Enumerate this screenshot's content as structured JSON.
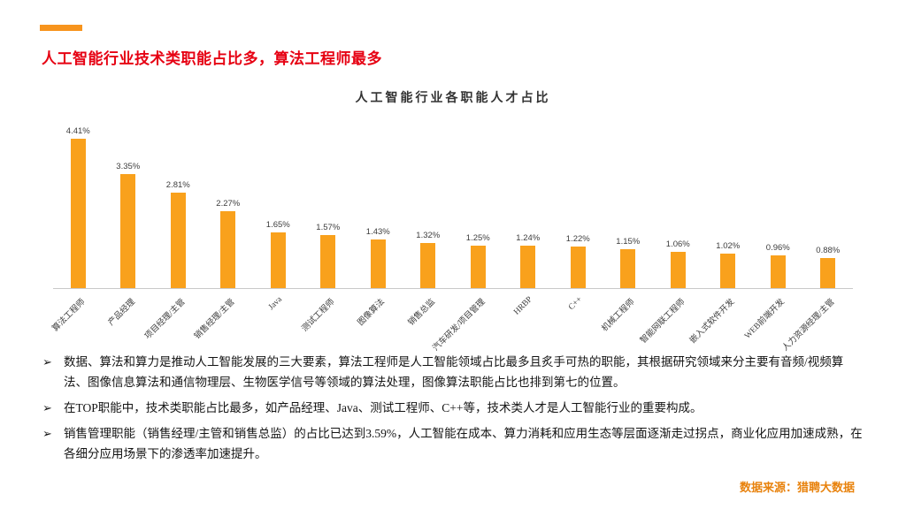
{
  "colors": {
    "accent": "#F7941D",
    "heading": "#E60012",
    "bar": "#F9A11C",
    "source": "#E8820C"
  },
  "title": "人工智能行业技术类职能占比多，算法工程师最多",
  "chart_data": {
    "type": "bar",
    "title": "人工智能行业各职能人才占比",
    "categories": [
      "算法工程师",
      "产品经理",
      "项目经理/主管",
      "销售经理/主管",
      "Java",
      "测试工程师",
      "图像算法",
      "销售总监",
      "汽车研发/项目管理",
      "HRBP",
      "C++",
      "机械工程师",
      "智能网联工程师",
      "嵌入式软件开发",
      "WEB前端开发",
      "人力资源经理/主管"
    ],
    "values": [
      4.41,
      3.35,
      2.81,
      2.27,
      1.65,
      1.57,
      1.43,
      1.32,
      1.25,
      1.24,
      1.22,
      1.15,
      1.06,
      1.02,
      0.96,
      0.88
    ],
    "value_labels": [
      "4.41%",
      "3.35%",
      "2.81%",
      "2.27%",
      "1.65%",
      "1.57%",
      "1.43%",
      "1.32%",
      "1.25%",
      "1.24%",
      "1.22%",
      "1.15%",
      "1.06%",
      "1.02%",
      "0.96%",
      "0.88%"
    ],
    "xlabel": "",
    "ylabel": "",
    "ylim": [
      0,
      5
    ],
    "grid": false,
    "legend": "none",
    "bar_color": "#F9A11C"
  },
  "bullet_marker": "➢",
  "bullets": [
    "数据、算法和算力是推动人工智能发展的三大要素，算法工程师是人工智能领域占比最多且炙手可热的职能，其根据研究领域来分主要有音频/视频算法、图像信息算法和通信物理层、生物医学信号等领域的算法处理，图像算法职能占比也排到第七的位置。",
    "在TOP职能中，技术类职能占比最多，如产品经理、Java、测试工程师、C++等，技术类人才是人工智能行业的重要构成。",
    "销售管理职能（销售经理/主管和销售总监）的占比已达到3.59%，人工智能在成本、算力消耗和应用生态等层面逐渐走过拐点，商业化应用加速成熟，在各细分应用场景下的渗透率加速提升。"
  ],
  "source": "数据来源：猎聘大数据"
}
